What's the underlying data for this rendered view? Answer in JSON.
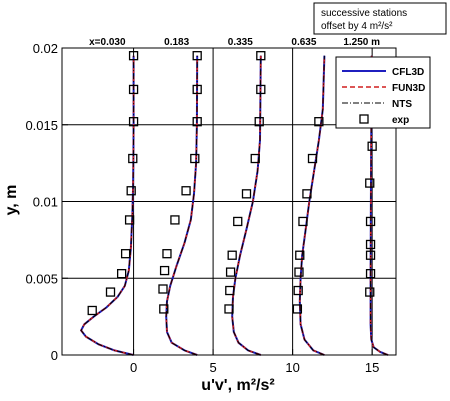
{
  "chart_data": {
    "type": "line",
    "title": "",
    "xlabel": "u'v', m²/s²",
    "ylabel": "y, m",
    "xlim": [
      -4.5,
      16.5
    ],
    "ylim": [
      0,
      0.02
    ],
    "grid": true,
    "xticks": [
      0,
      5,
      10,
      15
    ],
    "xtick_labels": [
      "0",
      "5",
      "10",
      "15"
    ],
    "yticks": [
      0,
      0.005,
      0.01,
      0.015,
      0.02
    ],
    "ytick_labels": [
      "0",
      "0.005",
      "0.01",
      "0.015",
      "0.02"
    ],
    "station_offsets": [
      0,
      4,
      8,
      12,
      16
    ],
    "station_labels": [
      "x=0.030",
      "0.183",
      "0.335",
      "0.635",
      "1.250 m"
    ],
    "annotation_lines": [
      "successive stations",
      "offset by 4 m²/s²"
    ],
    "legend_position": "top-right",
    "series": [
      {
        "name": "CFL3D",
        "style": "solid",
        "color": "#1f1fbf"
      },
      {
        "name": "FUN3D",
        "style": "dashed",
        "color": "#d11f1f"
      },
      {
        "name": "NTS",
        "style": "dashdot",
        "color": "#000000"
      },
      {
        "name": "exp",
        "style": "square-marker",
        "color": "#000000"
      }
    ],
    "cfd_profiles": [
      [
        [
          0.0,
          0.0
        ],
        [
          -0.4,
          0.0001
        ],
        [
          -1.2,
          0.0003
        ],
        [
          -2.2,
          0.0007
        ],
        [
          -3.0,
          0.0012
        ],
        [
          -3.3,
          0.0016
        ],
        [
          -3.1,
          0.002
        ],
        [
          -2.5,
          0.0025
        ],
        [
          -1.7,
          0.0031
        ],
        [
          -1.0,
          0.0038
        ],
        [
          -0.55,
          0.0045
        ],
        [
          -0.3,
          0.0055
        ],
        [
          -0.17,
          0.007
        ],
        [
          -0.08,
          0.009
        ],
        [
          -0.03,
          0.011
        ],
        [
          -0.01,
          0.013
        ],
        [
          0.0,
          0.015
        ],
        [
          0.0,
          0.0195
        ]
      ],
      [
        [
          4.0,
          0.0
        ],
        [
          3.2,
          0.0003
        ],
        [
          2.4,
          0.0008
        ],
        [
          2.1,
          0.0015
        ],
        [
          2.05,
          0.0025
        ],
        [
          2.1,
          0.0035
        ],
        [
          2.3,
          0.0045
        ],
        [
          2.7,
          0.0058
        ],
        [
          3.2,
          0.0073
        ],
        [
          3.6,
          0.0088
        ],
        [
          3.8,
          0.0105
        ],
        [
          3.93,
          0.0125
        ],
        [
          3.98,
          0.015
        ],
        [
          4.0,
          0.0195
        ]
      ],
      [
        [
          8.0,
          0.0
        ],
        [
          7.2,
          0.0003
        ],
        [
          6.6,
          0.0008
        ],
        [
          6.3,
          0.0015
        ],
        [
          6.2,
          0.0025
        ],
        [
          6.25,
          0.0038
        ],
        [
          6.4,
          0.005
        ],
        [
          6.7,
          0.0065
        ],
        [
          7.1,
          0.0082
        ],
        [
          7.5,
          0.01
        ],
        [
          7.8,
          0.012
        ],
        [
          7.95,
          0.014
        ],
        [
          8.0,
          0.0195
        ]
      ],
      [
        [
          12.0,
          0.0
        ],
        [
          11.3,
          0.0003
        ],
        [
          10.75,
          0.001
        ],
        [
          10.5,
          0.002
        ],
        [
          10.45,
          0.0035
        ],
        [
          10.5,
          0.005
        ],
        [
          10.6,
          0.0065
        ],
        [
          10.8,
          0.008
        ],
        [
          11.05,
          0.01
        ],
        [
          11.35,
          0.012
        ],
        [
          11.65,
          0.014
        ],
        [
          11.9,
          0.016
        ],
        [
          12.0,
          0.0195
        ]
      ],
      [
        [
          16.0,
          0.0
        ],
        [
          15.5,
          0.0002
        ],
        [
          15.1,
          0.0005
        ],
        [
          14.95,
          0.001
        ],
        [
          14.9,
          0.002
        ],
        [
          14.9,
          0.005
        ],
        [
          14.92,
          0.01
        ],
        [
          14.95,
          0.015
        ],
        [
          14.97,
          0.0195
        ]
      ]
    ],
    "exp_points": [
      [
        [
          -2.6,
          0.0029
        ],
        [
          -1.45,
          0.0041
        ],
        [
          -0.75,
          0.0053
        ],
        [
          -0.5,
          0.0066
        ],
        [
          -0.25,
          0.0088
        ],
        [
          -0.15,
          0.0107
        ],
        [
          -0.05,
          0.0128
        ],
        [
          0.0,
          0.0152
        ],
        [
          0.0,
          0.0173
        ],
        [
          0.0,
          0.0195
        ]
      ],
      [
        [
          1.9,
          0.003
        ],
        [
          1.85,
          0.0043
        ],
        [
          1.95,
          0.0055
        ],
        [
          2.1,
          0.0066
        ],
        [
          2.6,
          0.0088
        ],
        [
          3.3,
          0.0107
        ],
        [
          3.85,
          0.0128
        ],
        [
          4.0,
          0.0152
        ],
        [
          4.0,
          0.0173
        ],
        [
          4.0,
          0.0195
        ]
      ],
      [
        [
          6.0,
          0.003
        ],
        [
          6.05,
          0.0042
        ],
        [
          6.1,
          0.0054
        ],
        [
          6.2,
          0.0065
        ],
        [
          6.55,
          0.0087
        ],
        [
          7.1,
          0.0105
        ],
        [
          7.65,
          0.0128
        ],
        [
          7.9,
          0.0152
        ],
        [
          8.0,
          0.0173
        ],
        [
          8.0,
          0.0195
        ]
      ],
      [
        [
          10.3,
          0.003
        ],
        [
          10.35,
          0.0042
        ],
        [
          10.4,
          0.0054
        ],
        [
          10.45,
          0.0065
        ],
        [
          10.65,
          0.0087
        ],
        [
          10.9,
          0.0105
        ],
        [
          11.25,
          0.0128
        ],
        [
          11.65,
          0.0152
        ]
      ],
      [
        [
          14.85,
          0.0041
        ],
        [
          14.9,
          0.0053
        ],
        [
          14.9,
          0.0065
        ],
        [
          14.9,
          0.0072
        ],
        [
          14.9,
          0.0087
        ],
        [
          14.85,
          0.0112
        ],
        [
          15.0,
          0.0136
        ]
      ]
    ]
  }
}
